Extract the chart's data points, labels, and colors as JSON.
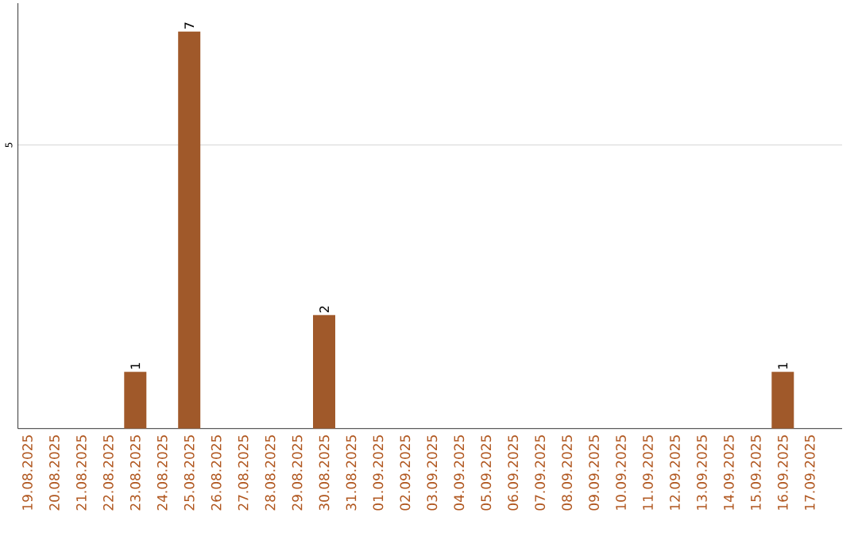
{
  "chart_data": {
    "type": "bar",
    "categories": [
      "19.08.2025",
      "20.08.2025",
      "21.08.2025",
      "22.08.2025",
      "23.08.2025",
      "24.08.2025",
      "25.08.2025",
      "26.08.2025",
      "27.08.2025",
      "28.08.2025",
      "29.08.2025",
      "30.08.2025",
      "31.08.2025",
      "01.09.2025",
      "02.09.2025",
      "03.09.2025",
      "04.09.2025",
      "05.09.2025",
      "06.09.2025",
      "07.09.2025",
      "08.09.2025",
      "09.09.2025",
      "10.09.2025",
      "11.09.2025",
      "12.09.2025",
      "13.09.2025",
      "14.09.2025",
      "15.09.2025",
      "16.09.2025",
      "17.09.2025"
    ],
    "values": [
      0,
      0,
      0,
      0,
      1,
      0,
      7,
      0,
      0,
      0,
      0,
      2,
      0,
      0,
      0,
      0,
      0,
      0,
      0,
      0,
      0,
      0,
      0,
      0,
      0,
      0,
      0,
      0,
      1,
      0
    ],
    "color": "#a0592a",
    "value_labels": [
      null,
      null,
      null,
      null,
      "1",
      null,
      "7",
      null,
      null,
      null,
      null,
      "2",
      null,
      null,
      null,
      null,
      null,
      null,
      null,
      null,
      null,
      null,
      null,
      null,
      null,
      null,
      null,
      null,
      "1",
      null
    ],
    "ylim": [
      0,
      7.5
    ],
    "yticks": [
      5
    ],
    "grid": "y"
  }
}
